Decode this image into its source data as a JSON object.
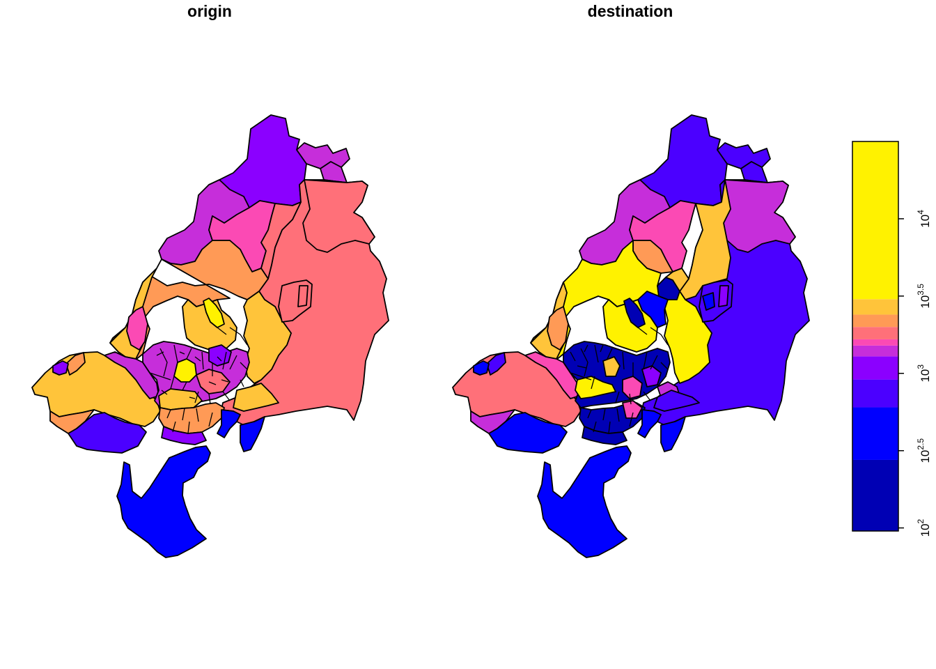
{
  "panels": [
    {
      "title": "origin"
    },
    {
      "title": "destination"
    }
  ],
  "legend": {
    "colors": [
      "#0000B4",
      "#0000FF",
      "#4B00FF",
      "#8B00FF",
      "#C62EDA",
      "#FB4AB4",
      "#FF7079",
      "#FF9A56",
      "#FFC43A",
      "#FFF200"
    ],
    "ticks": [
      {
        "base": "10",
        "exp": "2",
        "value": 100
      },
      {
        "base": "10",
        "exp": "2.5",
        "value": 316
      },
      {
        "base": "10",
        "exp": "3",
        "value": 1000
      },
      {
        "base": "10",
        "exp": "3.5",
        "value": 3162
      },
      {
        "base": "10",
        "exp": "4",
        "value": 10000
      }
    ]
  },
  "colors": {
    "yellow": "#FFF200",
    "gold": "#FFC43A",
    "orange": "#FF9A56",
    "salmon": "#FF7079",
    "pink": "#FB4AB4",
    "magenta": "#C62EDA",
    "violet": "#8B00FF",
    "indigo": "#4B00FF",
    "blue": "#0000FF",
    "navy": "#0000B4"
  }
}
